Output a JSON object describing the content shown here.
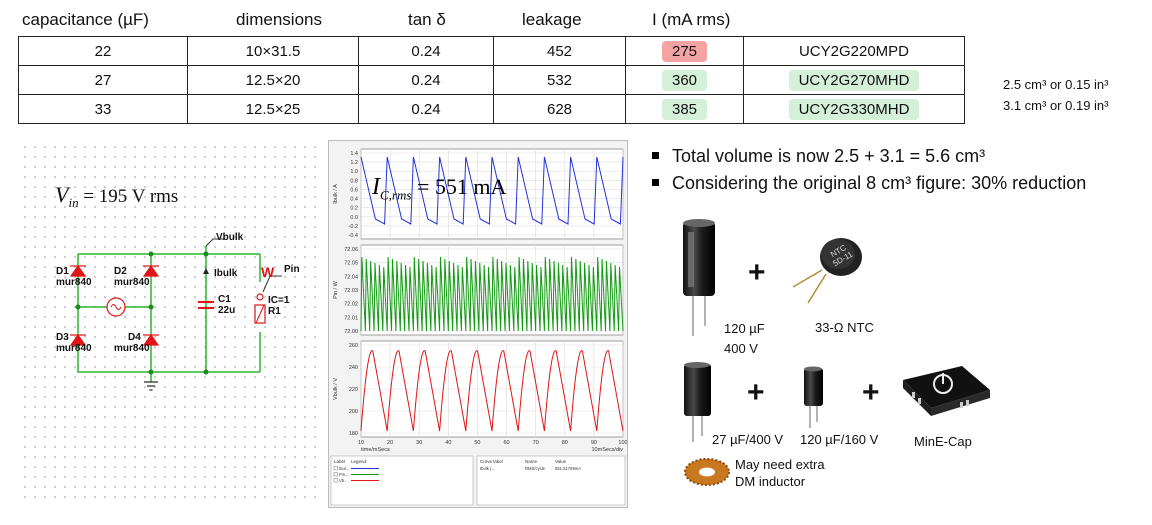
{
  "table": {
    "headers": [
      "capacitance (µF)",
      "dimensions",
      "tan δ",
      "leakage",
      "I (mA rms)"
    ],
    "rows": [
      {
        "capacitance": "22",
        "dimensions": "10×31.5",
        "tan": "0.24",
        "leakage": "452",
        "current": "275",
        "part": "UCY2G220MPD"
      },
      {
        "capacitance": "27",
        "dimensions": "12.5×20",
        "tan": "0.24",
        "leakage": "532",
        "current": "360",
        "part": "UCY2G270MHD"
      },
      {
        "capacitance": "33",
        "dimensions": "12.5×25",
        "tan": "0.24",
        "leakage": "628",
        "current": "385",
        "part": "UCY2G330MHD"
      }
    ],
    "volumes": [
      "2.5 cm³ or 0.15 in³",
      "3.1 cm³ or 0.19 in³"
    ]
  },
  "schematic": {
    "vin_symbol": "V",
    "vin_sub": "in",
    "vin_value": "= 195 V rms",
    "labels": {
      "d1": "D1",
      "d1_part": "mur840",
      "d2": "D2",
      "d2_part": "mur840",
      "d3": "D3",
      "d3_part": "mur840",
      "d4": "D4",
      "d4_part": "mur840",
      "c1": "C1",
      "c1_value": "22u",
      "ibulk": "Ibulk",
      "vbulk": "Vbulk",
      "pin": "Pin",
      "w": "W",
      "ic": "IC=1",
      "r1": "R1"
    }
  },
  "scope": {
    "annotation_symbol": "I",
    "annotation_sub": "C,rms",
    "annotation_value": "= 551 mA",
    "panel1": {
      "ylabel": "Ibulk / A",
      "yticks": [
        "1.4",
        "1.2",
        "1.0",
        "0.8",
        "0.6",
        "0.4",
        "0.2",
        "0.0",
        "-0.2",
        "-0.4"
      ]
    },
    "panel2": {
      "ylabel": "Pin / W",
      "yticks": [
        "72.06",
        "72.05",
        "72.04",
        "72.03",
        "72.02",
        "72.01",
        "72.00"
      ]
    },
    "panel3": {
      "ylabel": "Vbulk / V",
      "yticks": [
        "260",
        "240",
        "220",
        "200",
        "180"
      ]
    },
    "xticks": [
      "10",
      "20",
      "30",
      "40",
      "50",
      "60",
      "70",
      "80",
      "90",
      "100"
    ],
    "xlabel": "time/mSecs",
    "xdiv": "10mSecs/div",
    "legend_headers": [
      "Label",
      "Legend:",
      "Curve label",
      "Name",
      "Value"
    ],
    "legend_row": [
      "Ibulk (...",
      "RMS/cycle",
      "551.51769mA"
    ],
    "legend_items": [
      "Ibul...",
      "Pin...",
      "Vb..."
    ],
    "colors": {
      "ibulk": "#2233dd",
      "pin": "#129a12",
      "vbulk": "#e01515"
    }
  },
  "bullets": [
    "Total volume is now 2.5 + 3.1 = 5.6 cm³",
    "Considering the original 8 cm³ figure: 30% reduction"
  ],
  "components": {
    "cap1": [
      "120 µF",
      "400 V"
    ],
    "ntc": "33-Ω NTC",
    "ntc_marking": [
      "NTC",
      "5D-11"
    ],
    "cap2": "27 µF/400 V",
    "cap3": "120 µF/160 V",
    "mine": "MinE-Cap",
    "inductor": [
      "May need extra",
      "DM inductor"
    ],
    "plus": "+"
  }
}
